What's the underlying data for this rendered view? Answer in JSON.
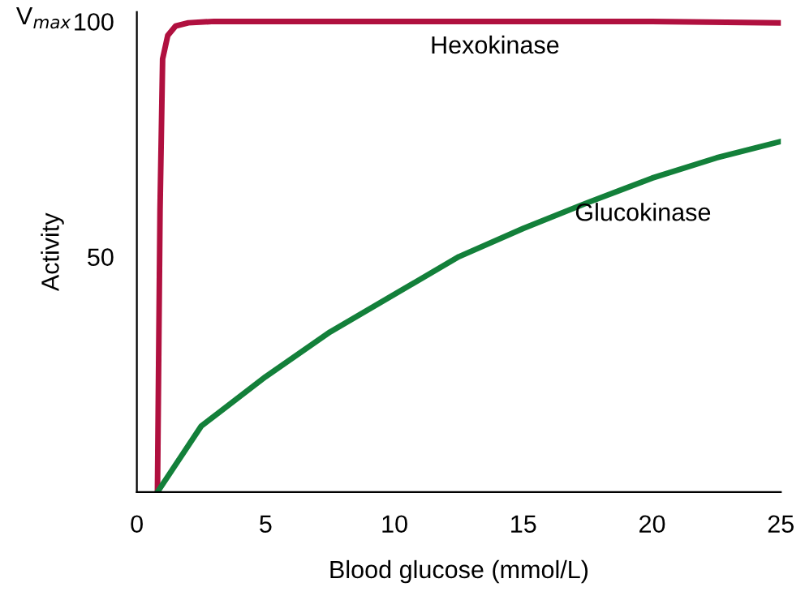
{
  "chart_data": {
    "type": "line",
    "xlabel": "Blood glucose (mmol/L)",
    "ylabel": "Activity",
    "annotations": [
      "V$_{max}$"
    ],
    "xlim": [
      0,
      25
    ],
    "xticks": [
      0,
      5,
      10,
      15,
      20,
      25
    ],
    "ylim": [
      0,
      102
    ],
    "yticks": [
      50,
      100
    ],
    "grid": false,
    "legend": false,
    "marker": "none",
    "line_style": "solid",
    "series": [
      {
        "name": "Hexokinase",
        "color": "#b0103f",
        "x": [
          0.8,
          0.9,
          1.0,
          1.2,
          1.5,
          2,
          3,
          5,
          10,
          15,
          20,
          25
        ],
        "values": [
          0,
          60,
          92,
          97,
          99,
          99.7,
          100,
          100,
          100,
          100,
          100,
          99.7
        ]
      },
      {
        "name": "Glucokinase",
        "color": "#13803a",
        "x": [
          0.8,
          2.5,
          5,
          7.5,
          10,
          12.5,
          15,
          17.5,
          20,
          22.5,
          25
        ],
        "values": [
          0,
          14,
          24.5,
          34,
          42,
          50,
          56,
          61.5,
          66.7,
          71,
          74.5
        ]
      }
    ]
  }
}
